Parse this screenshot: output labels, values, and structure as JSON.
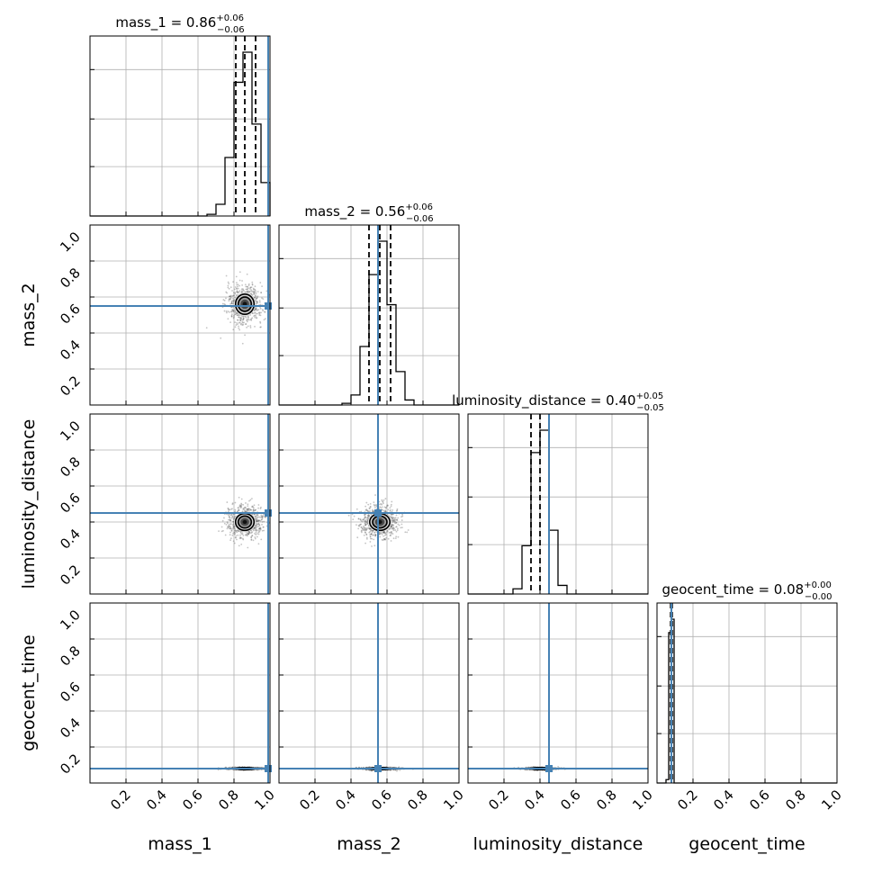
{
  "chart_data": {
    "type": "corner",
    "parameters": [
      "mass_1",
      "mass_2",
      "luminosity_distance",
      "geocent_time"
    ],
    "axis_range": [
      0,
      1
    ],
    "tick_labels": [
      "0.2",
      "0.4",
      "0.6",
      "0.8",
      "1.0"
    ],
    "ticks": [
      0.2,
      0.4,
      0.6,
      0.8,
      1.0
    ],
    "grid": true,
    "truth_color": "#4682b4",
    "truths": {
      "mass_1": 0.99,
      "mass_2": 0.55,
      "luminosity_distance": 0.45,
      "geocent_time": 0.08
    },
    "titles": [
      {
        "param": "mass_1",
        "text": "mass_1 = 0.86",
        "plus": "+0.06",
        "minus": "−0.06"
      },
      {
        "param": "mass_2",
        "text": "mass_2 = 0.56",
        "plus": "+0.06",
        "minus": "−0.06"
      },
      {
        "param": "luminosity_distance",
        "text": "luminosity_distance = 0.40",
        "plus": "+0.05",
        "minus": "−0.05"
      },
      {
        "param": "geocent_time",
        "text": "geocent_time = 0.08",
        "plus": "+0.00",
        "minus": "−0.00"
      }
    ],
    "quantiles": {
      "mass_1": [
        0.81,
        0.86,
        0.92
      ],
      "mass_2": [
        0.5,
        0.56,
        0.62
      ],
      "luminosity_distance": [
        0.35,
        0.4,
        0.45
      ],
      "geocent_time": [
        0.076,
        0.08,
        0.084
      ]
    },
    "histograms": {
      "mass_1": {
        "edges": [
          0.65,
          0.7,
          0.75,
          0.8,
          0.85,
          0.9,
          0.95,
          1.0
        ],
        "counts": [
          0.01,
          0.07,
          0.35,
          0.8,
          0.98,
          0.55,
          0.2
        ]
      },
      "mass_2": {
        "edges": [
          0.35,
          0.4,
          0.45,
          0.5,
          0.55,
          0.6,
          0.65,
          0.7,
          0.75
        ],
        "counts": [
          0.01,
          0.06,
          0.35,
          0.78,
          0.98,
          0.6,
          0.2,
          0.03
        ]
      },
      "luminosity_distance": {
        "edges": [
          0.25,
          0.3,
          0.35,
          0.4,
          0.45,
          0.5,
          0.55
        ],
        "counts": [
          0.03,
          0.28,
          0.82,
          0.95,
          0.37,
          0.05
        ]
      },
      "geocent_time": {
        "edges": [
          0.05,
          0.065,
          0.08,
          0.095
        ],
        "counts": [
          0.02,
          0.9,
          0.98
        ]
      }
    },
    "axis_labels": [
      "mass_1",
      "mass_2",
      "luminosity_distance",
      "geocent_time"
    ]
  }
}
